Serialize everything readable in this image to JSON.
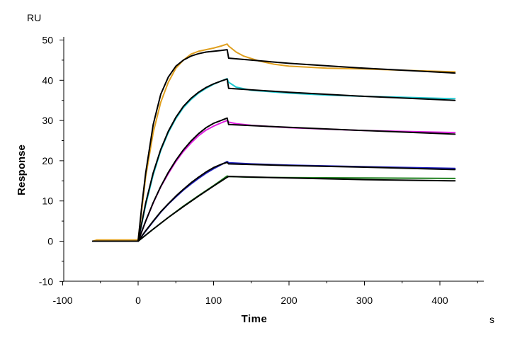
{
  "chart_data": {
    "type": "line",
    "title": "",
    "xlabel": "Time",
    "ylabel": "Response",
    "x_unit": "s",
    "y_unit": "RU",
    "xlim": [
      -100,
      450
    ],
    "ylim": [
      -10,
      52
    ],
    "x_ticks": [
      -100,
      0,
      100,
      200,
      300,
      400
    ],
    "x_tick_labels": [
      "-100",
      "0",
      "100",
      "200",
      "300",
      "400"
    ],
    "y_ticks": [
      -10,
      0,
      10,
      20,
      30,
      40,
      50
    ],
    "y_tick_labels": [
      "-10",
      "0",
      "10",
      "20",
      "30",
      "40",
      "50"
    ],
    "grid": false,
    "legend": "none",
    "series": [
      {
        "role": "measured",
        "color": "#E0A020",
        "x": [
          -60,
          -55,
          -10,
          0,
          5,
          10,
          20,
          30,
          40,
          50,
          60,
          70,
          80,
          90,
          100,
          110,
          118,
          120,
          130,
          140,
          160,
          180,
          200,
          250,
          300,
          350,
          400,
          420
        ],
        "y": [
          0,
          0.3,
          0.3,
          0.3,
          8,
          16,
          27,
          34.5,
          39.5,
          43,
          45,
          46.5,
          47.2,
          47.6,
          48,
          48.5,
          49,
          48.5,
          47,
          46,
          44.8,
          44,
          43.5,
          43,
          42.8,
          42.5,
          42.2,
          42.1
        ]
      },
      {
        "role": "fit",
        "color": "#000000",
        "x": [
          -60,
          -5,
          0,
          5,
          10,
          20,
          30,
          40,
          50,
          60,
          70,
          80,
          90,
          100,
          110,
          118,
          120,
          200,
          300,
          420
        ],
        "y": [
          0,
          0,
          0,
          9,
          17,
          29,
          36.5,
          40.8,
          43.5,
          45,
          46,
          46.6,
          47,
          47.2,
          47.4,
          47.6,
          45.5,
          44.2,
          43,
          41.8
        ]
      },
      {
        "role": "measured",
        "color": "#20C8D0",
        "x": [
          -60,
          0,
          10,
          20,
          30,
          40,
          50,
          60,
          70,
          80,
          90,
          100,
          110,
          118,
          120,
          130,
          150,
          200,
          250,
          300,
          350,
          420
        ],
        "y": [
          0,
          0,
          9,
          16.5,
          22.5,
          27,
          30.5,
          33.2,
          35.2,
          36.8,
          38,
          39,
          39.8,
          40.4,
          39.5,
          38.3,
          37.5,
          36.8,
          36.3,
          36,
          35.8,
          35.4
        ]
      },
      {
        "role": "fit",
        "color": "#000000",
        "x": [
          -60,
          0,
          10,
          20,
          30,
          40,
          50,
          60,
          70,
          80,
          90,
          100,
          110,
          118,
          120,
          200,
          300,
          420
        ],
        "y": [
          0,
          0,
          9.5,
          17,
          22.8,
          27.3,
          30.8,
          33.5,
          35.5,
          37,
          38.2,
          39.1,
          39.8,
          40.3,
          38,
          37,
          36,
          35
        ]
      },
      {
        "role": "measured",
        "color": "#E020E0",
        "x": [
          -60,
          0,
          10,
          20,
          30,
          40,
          50,
          60,
          70,
          80,
          90,
          100,
          110,
          118,
          120,
          130,
          150,
          200,
          300,
          420
        ],
        "y": [
          0,
          0,
          5,
          9.5,
          13.5,
          16.8,
          19.8,
          22.3,
          24.4,
          26.2,
          27.6,
          28.6,
          29.4,
          30,
          29.6,
          29.2,
          28.8,
          28.2,
          27.5,
          27
        ]
      },
      {
        "role": "fit",
        "color": "#000000",
        "x": [
          -60,
          0,
          10,
          20,
          30,
          40,
          50,
          60,
          70,
          80,
          90,
          100,
          110,
          118,
          120,
          200,
          300,
          420
        ],
        "y": [
          0,
          0,
          5,
          9.6,
          13.6,
          17.1,
          20.1,
          22.7,
          24.9,
          26.7,
          28.2,
          29.3,
          30,
          30.6,
          29,
          28.3,
          27.5,
          26.6
        ]
      },
      {
        "role": "measured",
        "color": "#2020C0",
        "x": [
          -60,
          0,
          10,
          20,
          30,
          40,
          50,
          60,
          70,
          80,
          90,
          100,
          110,
          118,
          120,
          150,
          200,
          300,
          420
        ],
        "y": [
          0,
          0,
          2.5,
          4.9,
          7.2,
          9.2,
          11,
          12.7,
          14.2,
          15.6,
          16.9,
          18,
          19,
          19.8,
          19.5,
          19.2,
          18.9,
          18.5,
          18.1
        ]
      },
      {
        "role": "fit",
        "color": "#000000",
        "x": [
          -60,
          0,
          10,
          20,
          30,
          40,
          50,
          60,
          70,
          80,
          90,
          100,
          110,
          118,
          120,
          200,
          300,
          420
        ],
        "y": [
          0,
          0,
          2.6,
          5,
          7.3,
          9.3,
          11.2,
          12.9,
          14.5,
          15.9,
          17.2,
          18.3,
          19.1,
          19.6,
          19.2,
          18.8,
          18.4,
          17.8
        ]
      },
      {
        "role": "measured",
        "color": "#208020",
        "x": [
          -60,
          0,
          20,
          40,
          60,
          80,
          100,
          118,
          120,
          150,
          200,
          300,
          420
        ],
        "y": [
          0,
          0,
          3,
          5.9,
          8.7,
          11.3,
          13.8,
          16.2,
          16.1,
          15.9,
          15.8,
          15.7,
          15.6
        ]
      },
      {
        "role": "fit",
        "color": "#000000",
        "x": [
          -60,
          0,
          20,
          40,
          60,
          80,
          100,
          118,
          120,
          200,
          300,
          420
        ],
        "y": [
          0,
          0,
          3,
          5.9,
          8.6,
          11.2,
          13.7,
          15.9,
          16.1,
          15.7,
          15.3,
          15
        ]
      }
    ]
  }
}
